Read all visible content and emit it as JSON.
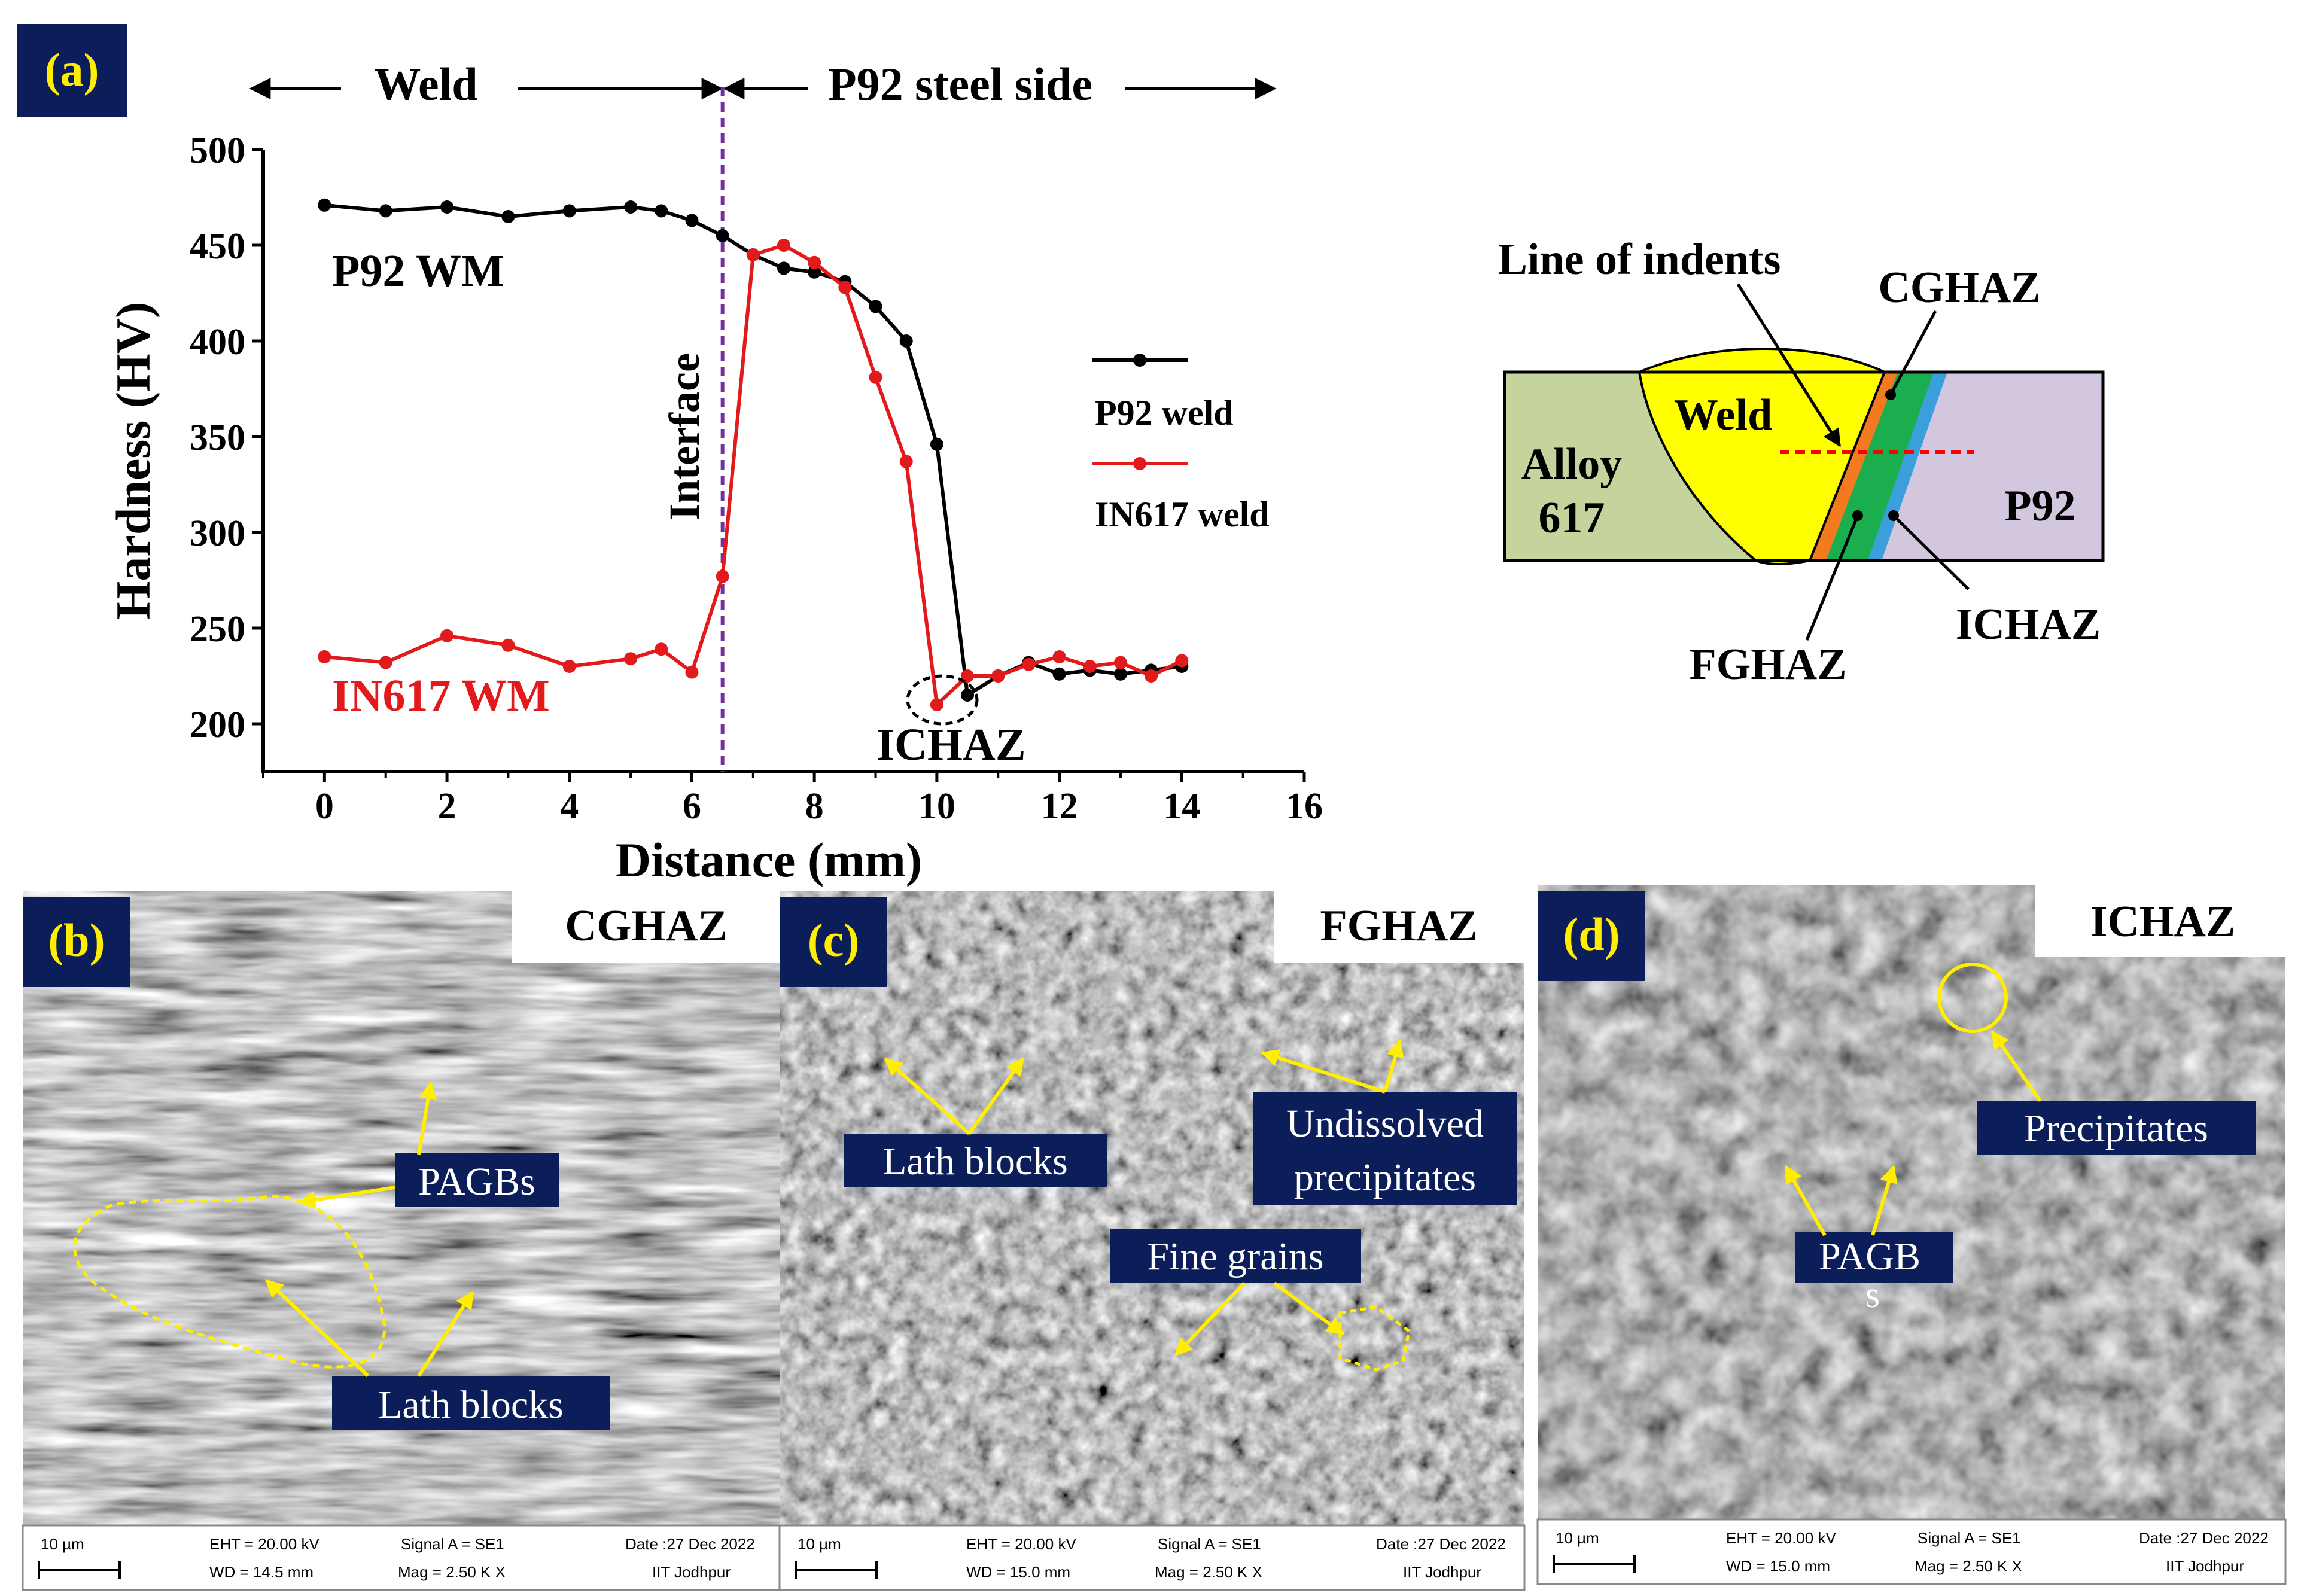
{
  "panel_labels": {
    "a": "(a)",
    "b": "(b)",
    "c": "(c)",
    "d": "(d)"
  },
  "colors": {
    "label_bg": "#0c1e5a",
    "p92": "#000000",
    "in617": "#e31a1c",
    "interface": "#7030a0",
    "callout": "#ffee00",
    "weld": "#ffff00",
    "alloy617": "#c4d49c",
    "p92_base": "#d3c6df",
    "cghaz": "#f37a1f",
    "fghaz": "#1aae4e",
    "ichaz": "#3b9fdc"
  },
  "chart_data": {
    "type": "line",
    "xlabel": "Distance (mm)",
    "ylabel": "Hardness (HV)",
    "xlim": [
      -1,
      16
    ],
    "ylim": [
      175,
      500
    ],
    "xticks": [
      0,
      2,
      4,
      6,
      8,
      10,
      12,
      14,
      16
    ],
    "yticks": [
      200,
      250,
      300,
      350,
      400,
      450,
      500
    ],
    "legend_position": "right",
    "series": [
      {
        "name": "P92 weld",
        "color": "#000000",
        "x": [
          0,
          1,
          2,
          3,
          4,
          5,
          5.5,
          6,
          6.5,
          7,
          7.5,
          8,
          8.5,
          9,
          9.5,
          10,
          10.5,
          11,
          11.5,
          12,
          12.5,
          13,
          13.5,
          14
        ],
        "y": [
          471,
          468,
          470,
          465,
          468,
          470,
          468,
          463,
          455,
          445,
          438,
          436,
          431,
          418,
          400,
          346,
          215,
          225,
          232,
          226,
          228,
          226,
          228,
          230
        ]
      },
      {
        "name": "IN617 weld",
        "color": "#e31a1c",
        "x": [
          0,
          1,
          2,
          3,
          4,
          5,
          5.5,
          6,
          6.5,
          7,
          7.5,
          8,
          8.5,
          9,
          9.5,
          10,
          10.5,
          11,
          11.5,
          12,
          12.5,
          13,
          13.5,
          14
        ],
        "y": [
          235,
          232,
          246,
          241,
          230,
          234,
          239,
          227,
          277,
          445,
          450,
          441,
          428,
          381,
          337,
          210,
          225,
          225,
          231,
          235,
          230,
          232,
          225,
          233
        ]
      }
    ],
    "interface_x": 6.5,
    "annotations": {
      "weld_label": "Weld",
      "p92_side_label": "P92 steel side",
      "p92_wm": "P92 WM",
      "in617_wm": "IN617 WM",
      "interface": "Interface",
      "ichaz": "ICHAZ"
    }
  },
  "schematic": {
    "line_of_indents": "Line of indents",
    "cghaz": "CGHAZ",
    "weld": "Weld",
    "alloy_line1": "Alloy",
    "alloy_line2": "617",
    "p92": "P92",
    "fghaz": "FGHAZ",
    "ichaz": "ICHAZ"
  },
  "micrographs": [
    {
      "title": "CGHAZ",
      "labels": [
        "PAGBs",
        "Lath blocks"
      ],
      "footer": {
        "scale": "10 µm",
        "eht": "EHT = 20.00 kV",
        "wd": "WD = 14.5 mm",
        "signal": "Signal A = SE1",
        "mag": "Mag =   2.50 K X",
        "date": "Date :27 Dec 2022",
        "org": "IIT Jodhpur"
      }
    },
    {
      "title": "FGHAZ",
      "labels": [
        "Lath blocks",
        "Undissolved",
        "precipitates",
        "Fine grains"
      ],
      "footer": {
        "scale": "10 µm",
        "eht": "EHT = 20.00 kV",
        "wd": "WD = 15.0 mm",
        "signal": "Signal A = SE1",
        "mag": "Mag =   2.50 K X",
        "date": "Date :27 Dec 2022",
        "org": "IIT Jodhpur"
      }
    },
    {
      "title": "ICHAZ",
      "labels": [
        "Precipitates",
        "PAGB",
        "s"
      ],
      "footer": {
        "scale": "10 µm",
        "eht": "EHT = 20.00 kV",
        "wd": "WD = 15.0 mm",
        "signal": "Signal A = SE1",
        "mag": "Mag =   2.50 K X",
        "date": "Date :27 Dec 2022",
        "org": "IIT Jodhpur"
      }
    }
  ]
}
